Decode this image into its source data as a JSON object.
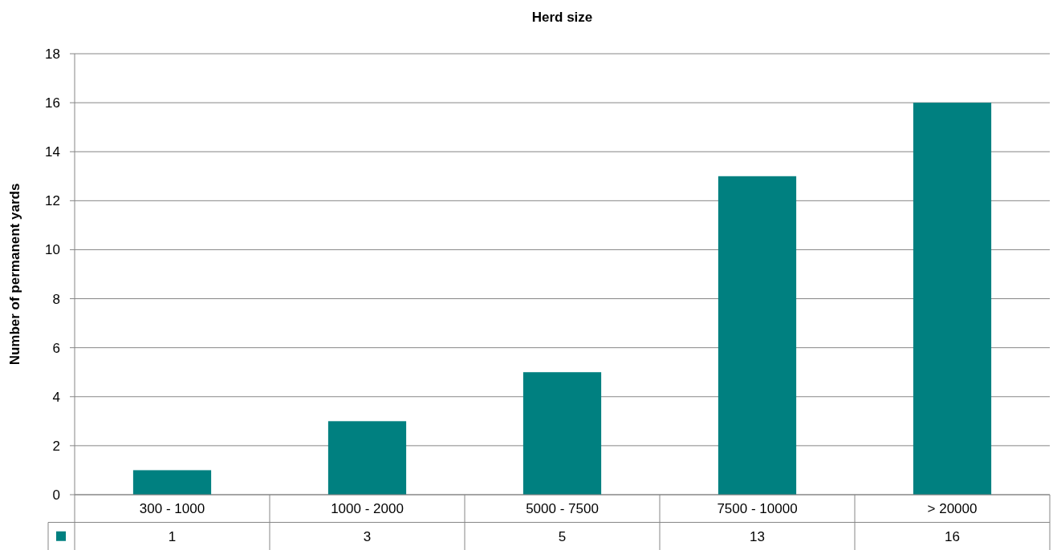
{
  "chart_data": {
    "type": "bar",
    "title": "Herd size",
    "ylabel": "Number of permanent yards",
    "categories": [
      "300 - 1000",
      "1000 - 2000",
      "5000 - 7500",
      "7500 - 10000",
      "> 20000"
    ],
    "values": [
      1,
      3,
      5,
      13,
      16
    ],
    "color": "#008080",
    "ylim": [
      0,
      18
    ],
    "yticks": [
      0,
      2,
      4,
      6,
      8,
      10,
      12,
      14,
      16,
      18
    ],
    "grid": "y",
    "data_labels": true
  }
}
